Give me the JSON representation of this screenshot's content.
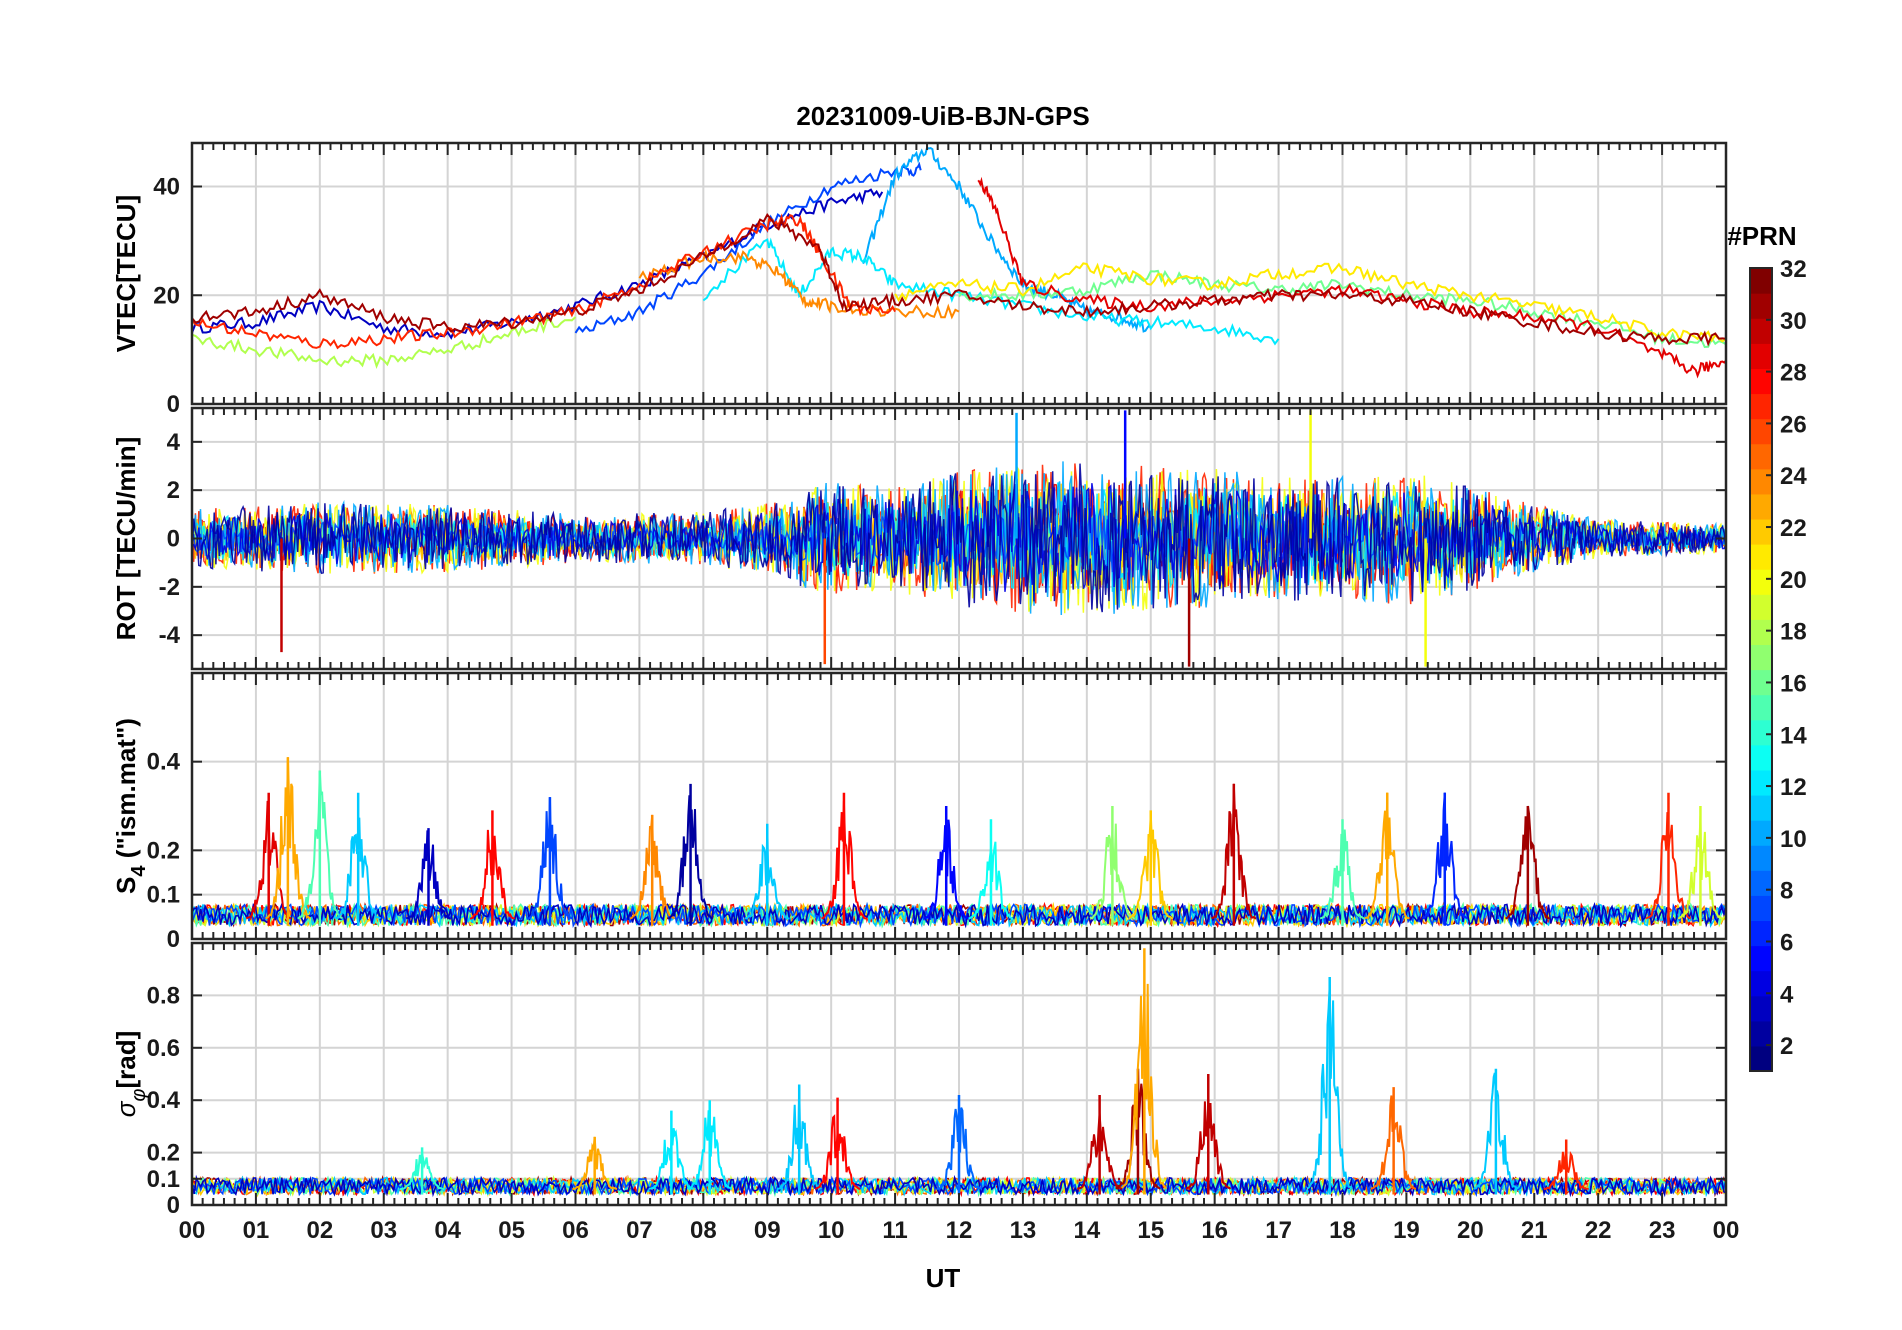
{
  "chart_data": {
    "type": "line",
    "title": "20231009-UiB-BJN-GPS",
    "xlabel": "UT",
    "x_tick_labels": [
      "00",
      "01",
      "02",
      "03",
      "04",
      "05",
      "06",
      "07",
      "08",
      "09",
      "10",
      "11",
      "12",
      "13",
      "14",
      "15",
      "16",
      "17",
      "18",
      "19",
      "20",
      "21",
      "22",
      "23",
      "00"
    ],
    "xlim_hours": [
      0,
      24
    ],
    "panels": [
      {
        "id": "vtec",
        "ylabel": "VTEC[TECU]",
        "ylim": [
          0,
          48
        ],
        "yticks": [
          0,
          20,
          40
        ],
        "ytick_labels": [
          "0",
          "20",
          "40"
        ],
        "grid": true,
        "series": [
          {
            "prn": 3,
            "x": [
              0.0,
              1.0,
              2.0,
              3.0,
              4.0,
              5.0,
              6.0,
              7.0,
              8.0,
              9.0,
              10.0,
              10.8
            ],
            "y": [
              14,
              15,
              18,
              14,
              13,
              15,
              18,
              22,
              27,
              33,
              37,
              39
            ]
          },
          {
            "prn": 7,
            "x": [
              6.0,
              7.0,
              8.0,
              9.0,
              10.0,
              11.0,
              11.4
            ],
            "y": [
              13,
              17,
              24,
              33,
              40,
              43,
              43
            ]
          },
          {
            "prn": 10,
            "x": [
              10.5,
              11.0,
              11.5,
              12.0,
              12.5,
              13.0,
              13.5,
              14.0,
              14.5,
              15.0
            ],
            "y": [
              26,
              42,
              47,
              40,
              30,
              22,
              20,
              17,
              16,
              14
            ]
          },
          {
            "prn": 12,
            "x": [
              8.0,
              9.0,
              9.5,
              10.0,
              10.5,
              11.0,
              12.0,
              13.0,
              14.0,
              15.0,
              16.0,
              17.0
            ],
            "y": [
              20,
              30,
              20,
              28,
              27,
              22,
              20,
              18,
              16,
              15,
              14,
              12
            ]
          },
          {
            "prn": 16,
            "x": [
              12.0,
              13.0,
              14.0,
              15.0,
              16.0,
              17.0,
              18.0,
              19.0,
              20.0,
              21.0,
              22.0,
              23.0,
              24.0
            ],
            "y": [
              20,
              20,
              21,
              24,
              22,
              21,
              22,
              20,
              19,
              17,
              15,
              12,
              11
            ]
          },
          {
            "prn": 18,
            "x": [
              0.0,
              1.0,
              2.0,
              3.0,
              4.0,
              5.0,
              6.0
            ],
            "y": [
              12,
              10,
              8,
              8,
              10,
              13,
              16
            ]
          },
          {
            "prn": 21,
            "x": [
              11.0,
              12.0,
              13.0,
              14.0,
              15.0,
              16.0,
              17.0,
              18.0,
              19.0,
              20.0,
              21.0,
              22.0,
              23.0,
              24.0
            ],
            "y": [
              20,
              22,
              21,
              25,
              23,
              22,
              24,
              25,
              22,
              20,
              18,
              16,
              13,
              12
            ]
          },
          {
            "prn": 24,
            "x": [
              7.0,
              8.0,
              8.7,
              9.2,
              9.6,
              10.0,
              11.0,
              12.0
            ],
            "y": [
              23,
              27,
              27,
              24,
              19,
              18,
              17,
              17
            ]
          },
          {
            "prn": 27,
            "x": [
              0.0,
              1.0,
              2.0,
              3.0,
              4.0,
              5.0,
              6.0,
              7.0,
              8.0,
              9.0,
              9.5,
              9.8,
              10.3,
              11.0
            ],
            "y": [
              15,
              13,
              11,
              12,
              13,
              15,
              17,
              22,
              28,
              33,
              34,
              28,
              18,
              17
            ]
          },
          {
            "prn": 29,
            "x": [
              12.3,
              12.6,
              13.0,
              14.0,
              15.0,
              16.0,
              17.0,
              18.0,
              19.0,
              20.0,
              21.0,
              22.0,
              23.0,
              23.5,
              24.0
            ],
            "y": [
              42,
              35,
              22,
              19,
              18,
              19,
              20,
              21,
              19,
              17,
              16,
              14,
              9,
              6,
              8
            ]
          },
          {
            "prn": 31,
            "x": [
              0.0,
              1.0,
              2.0,
              3.0,
              4.0,
              5.0,
              6.0,
              7.0,
              8.0,
              9.0,
              9.8,
              10.2,
              11.0,
              12.0,
              13.0,
              14.0,
              15.0,
              16.0,
              17.0,
              18.0,
              19.0,
              20.0,
              21.0,
              22.0,
              23.0,
              24.0
            ],
            "y": [
              16,
              17,
              20,
              16,
              14,
              15,
              17,
              21,
              27,
              34,
              29,
              18,
              19,
              20,
              18,
              17,
              18,
              19,
              20,
              20,
              19,
              17,
              15,
              13,
              12,
              12
            ]
          }
        ]
      },
      {
        "id": "rot",
        "ylabel": "ROT [TECU/min]",
        "ylim": [
          -5.4,
          5.4
        ],
        "yticks": [
          -4,
          -2,
          0,
          2,
          4
        ],
        "ytick_labels": [
          "-4",
          "-2",
          "0",
          "2",
          "4"
        ],
        "grid": true,
        "envelope_hours": [
          0,
          2,
          4,
          6,
          8,
          9,
          10,
          11,
          12,
          13,
          14,
          15,
          16,
          17,
          18,
          19,
          20,
          21,
          22,
          23,
          24
        ],
        "envelope_amplitude": [
          1.2,
          1.5,
          1.4,
          1.0,
          1.1,
          1.5,
          2.4,
          2.2,
          2.8,
          3.2,
          3.2,
          3.0,
          2.9,
          2.6,
          2.6,
          2.8,
          2.2,
          1.4,
          0.8,
          0.7,
          0.6
        ],
        "spikes": [
          {
            "hour": 1.4,
            "value": -4.7,
            "prn": 30
          },
          {
            "hour": 9.9,
            "value": -5.2,
            "prn": 26
          },
          {
            "hour": 14.6,
            "value": 5.3,
            "prn": 5
          },
          {
            "hour": 15.6,
            "value": -5.3,
            "prn": 31
          },
          {
            "hour": 17.5,
            "value": 5.3,
            "prn": 20
          },
          {
            "hour": 19.3,
            "value": -5.3,
            "prn": 20
          },
          {
            "hour": 12.9,
            "value": 5.2,
            "prn": 10
          }
        ]
      },
      {
        "id": "s4",
        "ylabel": "S4 (\"ism.mat\")",
        "ylabel_main": "S",
        "ylabel_sub": "4",
        "ylabel_rest": " (\"ism.mat\")",
        "ylim": [
          0,
          0.6
        ],
        "yticks": [
          0,
          0.1,
          0.2,
          0.4
        ],
        "ytick_labels": [
          "0",
          "0.1",
          "0.2",
          "0.4"
        ],
        "grid": true,
        "baseline": 0.03,
        "peaks": [
          {
            "hour": 1.2,
            "value": 0.33,
            "prn": 29
          },
          {
            "hour": 1.5,
            "value": 0.41,
            "prn": 23
          },
          {
            "hour": 2.0,
            "value": 0.38,
            "prn": 15
          },
          {
            "hour": 2.6,
            "value": 0.33,
            "prn": 11
          },
          {
            "hour": 3.7,
            "value": 0.25,
            "prn": 3
          },
          {
            "hour": 4.7,
            "value": 0.29,
            "prn": 28
          },
          {
            "hour": 5.6,
            "value": 0.32,
            "prn": 7
          },
          {
            "hour": 7.2,
            "value": 0.28,
            "prn": 24
          },
          {
            "hour": 7.8,
            "value": 0.35,
            "prn": 2
          },
          {
            "hour": 9.0,
            "value": 0.26,
            "prn": 11
          },
          {
            "hour": 10.2,
            "value": 0.33,
            "prn": 28
          },
          {
            "hour": 11.8,
            "value": 0.3,
            "prn": 5
          },
          {
            "hour": 12.5,
            "value": 0.27,
            "prn": 13
          },
          {
            "hour": 14.4,
            "value": 0.3,
            "prn": 17
          },
          {
            "hour": 15.0,
            "value": 0.29,
            "prn": 22
          },
          {
            "hour": 16.3,
            "value": 0.35,
            "prn": 30
          },
          {
            "hour": 18.0,
            "value": 0.27,
            "prn": 15
          },
          {
            "hour": 18.7,
            "value": 0.33,
            "prn": 23
          },
          {
            "hour": 19.6,
            "value": 0.33,
            "prn": 6
          },
          {
            "hour": 20.9,
            "value": 0.3,
            "prn": 31
          },
          {
            "hour": 23.1,
            "value": 0.33,
            "prn": 27
          },
          {
            "hour": 23.6,
            "value": 0.3,
            "prn": 19
          }
        ]
      },
      {
        "id": "sigma_phi",
        "ylabel": "σφ[rad]",
        "ylabel_main": "σ",
        "ylabel_sub": "φ",
        "ylabel_rest": "[rad]",
        "ylim": [
          0,
          1.0
        ],
        "yticks": [
          0,
          0.1,
          0.2,
          0.4,
          0.6,
          0.8
        ],
        "ytick_labels": [
          "0",
          "0.1",
          "0.2",
          "0.4",
          "0.6",
          "0.8"
        ],
        "grid": true,
        "baseline": 0.04,
        "peaks": [
          {
            "hour": 3.6,
            "value": 0.22,
            "prn": 14
          },
          {
            "hour": 6.3,
            "value": 0.26,
            "prn": 23
          },
          {
            "hour": 7.5,
            "value": 0.36,
            "prn": 12
          },
          {
            "hour": 8.1,
            "value": 0.4,
            "prn": 12
          },
          {
            "hour": 9.5,
            "value": 0.46,
            "prn": 11
          },
          {
            "hour": 10.1,
            "value": 0.41,
            "prn": 28
          },
          {
            "hour": 12.0,
            "value": 0.42,
            "prn": 8
          },
          {
            "hour": 14.2,
            "value": 0.42,
            "prn": 30
          },
          {
            "hour": 14.8,
            "value": 0.52,
            "prn": 31
          },
          {
            "hour": 14.9,
            "value": 0.98,
            "prn": 23
          },
          {
            "hour": 15.9,
            "value": 0.5,
            "prn": 30
          },
          {
            "hour": 17.8,
            "value": 0.87,
            "prn": 11
          },
          {
            "hour": 18.8,
            "value": 0.45,
            "prn": 25
          },
          {
            "hour": 20.4,
            "value": 0.52,
            "prn": 11
          },
          {
            "hour": 21.5,
            "value": 0.25,
            "prn": 27
          }
        ]
      }
    ],
    "colorbar": {
      "label": "#PRN",
      "range": [
        1,
        32
      ],
      "ticks": [
        2,
        4,
        6,
        8,
        10,
        12,
        14,
        16,
        18,
        20,
        22,
        24,
        26,
        28,
        30,
        32
      ],
      "tick_labels": [
        "2",
        "4",
        "6",
        "8",
        "10",
        "12",
        "14",
        "16",
        "18",
        "20",
        "22",
        "24",
        "26",
        "28",
        "30",
        "32"
      ],
      "colormap": "jet"
    }
  }
}
